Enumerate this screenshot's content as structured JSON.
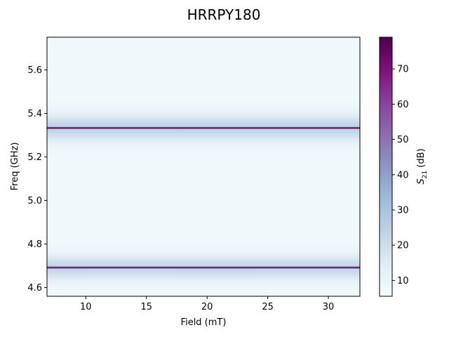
{
  "chart_data": {
    "type": "heatmap",
    "title": "HRRPY180",
    "xlabel": "Field (mT)",
    "ylabel": "Freq (GHz)",
    "colorbar_label_base": "S",
    "colorbar_label_sub": "21",
    "colorbar_label_unit": " (dB)",
    "xlim": [
      6.8,
      32.6
    ],
    "ylim": [
      4.56,
      5.75
    ],
    "x_ticks": [
      10,
      15,
      20,
      25,
      30
    ],
    "x_tick_labels": [
      "10",
      "15",
      "20",
      "25",
      "30"
    ],
    "y_ticks": [
      4.6,
      4.8,
      5.0,
      5.2,
      5.4,
      5.6
    ],
    "y_tick_labels": [
      "4.6",
      "4.8",
      "5.0",
      "5.2",
      "5.4",
      "5.6"
    ],
    "colorbar_range": [
      5.5,
      79
    ],
    "colorbar_ticks": [
      10,
      20,
      30,
      40,
      50,
      60,
      70
    ],
    "colorbar_tick_labels": [
      "10",
      "20",
      "30",
      "40",
      "50",
      "60",
      "70"
    ],
    "colormap": "BuPu",
    "colormap_stops": [
      "#f7fcfd",
      "#e0ecf4",
      "#bfd3e6",
      "#9ebcda",
      "#8c96c6",
      "#8c6bb1",
      "#88419d",
      "#810f7c",
      "#4d004b"
    ],
    "background_level_db": 8,
    "resonance_lines": [
      {
        "freq_ghz": 5.333,
        "peak_db": 79,
        "halo_db": 24,
        "halo_width_ghz": 0.06
      },
      {
        "freq_ghz": 4.692,
        "peak_db": 76,
        "halo_db": 23,
        "halo_width_ghz": 0.055
      }
    ],
    "grid": false
  }
}
